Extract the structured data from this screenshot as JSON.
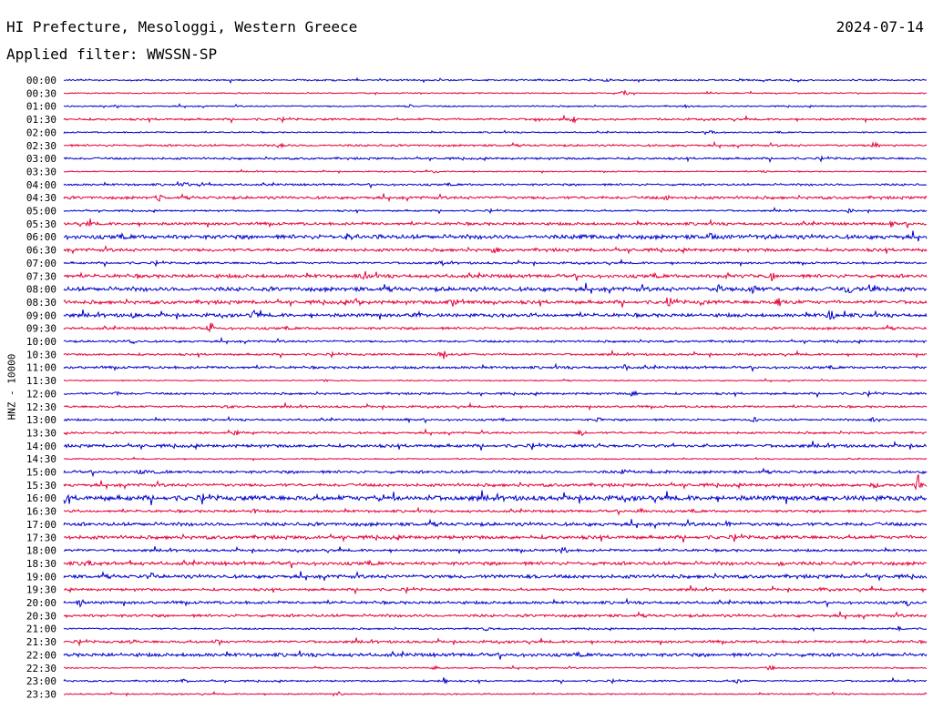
{
  "header": {
    "title": "HI Prefecture, Mesologgi, Western Greece",
    "date": "2024-07-14",
    "filter": "Applied filter: WWSSN-SP"
  },
  "chart_data": {
    "type": "line",
    "title": "",
    "ylabel": "HNZ - 10000",
    "xlabel": "",
    "grid": false,
    "legend": "none",
    "colors": {
      "even": "#0000cc",
      "odd": "#e6003a"
    },
    "rows": [
      {
        "label": "00:00",
        "level": 0.12,
        "events": [
          [
            0.63,
            0.2
          ]
        ]
      },
      {
        "label": "00:30",
        "level": 0.08,
        "events": [
          [
            0.65,
            0.35
          ]
        ]
      },
      {
        "label": "01:00",
        "level": 0.1,
        "events": [
          [
            0.4,
            0.2
          ],
          [
            0.72,
            0.2
          ]
        ]
      },
      {
        "label": "01:30",
        "level": 0.15,
        "events": [
          [
            0.55,
            0.35
          ],
          [
            0.59,
            0.45
          ]
        ]
      },
      {
        "label": "02:00",
        "level": 0.1,
        "events": [
          [
            0.75,
            0.25
          ]
        ]
      },
      {
        "label": "02:30",
        "level": 0.15,
        "events": [
          [
            0.25,
            0.25
          ],
          [
            0.94,
            0.35
          ]
        ]
      },
      {
        "label": "03:00",
        "level": 0.15,
        "events": []
      },
      {
        "label": "03:30",
        "level": 0.08,
        "events": [
          [
            0.43,
            0.2
          ],
          [
            0.81,
            0.15
          ]
        ]
      },
      {
        "label": "04:00",
        "level": 0.15,
        "events": [
          [
            0.14,
            0.3
          ],
          [
            0.16,
            0.25
          ]
        ]
      },
      {
        "label": "04:30",
        "level": 0.2,
        "events": [
          [
            0.11,
            0.3
          ],
          [
            0.7,
            0.2
          ]
        ]
      },
      {
        "label": "05:00",
        "level": 0.12,
        "events": [
          [
            0.91,
            0.4
          ]
        ]
      },
      {
        "label": "05:30",
        "level": 0.2,
        "events": [
          [
            0.03,
            0.35
          ],
          [
            0.96,
            0.45
          ]
        ]
      },
      {
        "label": "06:00",
        "level": 0.3,
        "events": [
          [
            0.33,
            0.35
          ],
          [
            0.6,
            0.3
          ],
          [
            0.75,
            0.35
          ]
        ]
      },
      {
        "label": "06:30",
        "level": 0.22,
        "events": [
          [
            0.5,
            0.35
          ]
        ]
      },
      {
        "label": "07:00",
        "level": 0.15,
        "events": [
          [
            0.44,
            0.3
          ]
        ]
      },
      {
        "label": "07:30",
        "level": 0.25,
        "events": [
          [
            0.35,
            0.55
          ],
          [
            0.77,
            0.55
          ],
          [
            0.82,
            0.5
          ]
        ]
      },
      {
        "label": "08:00",
        "level": 0.3,
        "events": [
          [
            0.76,
            0.6
          ],
          [
            0.8,
            0.45
          ],
          [
            0.91,
            0.45
          ],
          [
            0.94,
            0.55
          ]
        ]
      },
      {
        "label": "08:30",
        "level": 0.25,
        "events": [
          [
            0.34,
            0.45
          ],
          [
            0.45,
            0.45
          ],
          [
            0.7,
            0.5
          ],
          [
            0.74,
            0.45
          ],
          [
            0.83,
            0.5
          ]
        ]
      },
      {
        "label": "09:00",
        "level": 0.25,
        "events": [
          [
            0.08,
            0.3
          ],
          [
            0.22,
            0.55
          ],
          [
            0.41,
            0.4
          ],
          [
            0.89,
            0.7
          ]
        ]
      },
      {
        "label": "09:30",
        "level": 0.18,
        "events": [
          [
            0.17,
            0.4
          ]
        ]
      },
      {
        "label": "10:00",
        "level": 0.15,
        "events": [
          [
            0.08,
            0.3
          ]
        ]
      },
      {
        "label": "10:30",
        "level": 0.15,
        "events": [
          [
            0.44,
            1.25
          ]
        ]
      },
      {
        "label": "11:00",
        "level": 0.18,
        "events": [
          [
            0.65,
            0.25
          ]
        ]
      },
      {
        "label": "11:30",
        "level": 0.08,
        "events": [
          [
            0.3,
            0.2
          ]
        ]
      },
      {
        "label": "12:00",
        "level": 0.15,
        "events": [
          [
            0.06,
            0.3
          ],
          [
            0.66,
            0.3
          ]
        ]
      },
      {
        "label": "12:30",
        "level": 0.15,
        "events": [
          [
            0.19,
            0.2
          ]
        ]
      },
      {
        "label": "13:00",
        "level": 0.15,
        "events": [
          [
            0.4,
            0.25
          ],
          [
            0.62,
            0.3
          ],
          [
            0.8,
            0.3
          ],
          [
            0.94,
            0.3
          ]
        ]
      },
      {
        "label": "13:30",
        "level": 0.15,
        "events": [
          [
            0.2,
            0.4
          ],
          [
            0.6,
            0.35
          ]
        ]
      },
      {
        "label": "14:00",
        "level": 0.22,
        "events": [
          [
            0.62,
            0.25
          ]
        ]
      },
      {
        "label": "14:30",
        "level": 0.08,
        "events": []
      },
      {
        "label": "15:00",
        "level": 0.2,
        "events": [
          [
            0.09,
            0.25
          ],
          [
            0.65,
            0.25
          ]
        ]
      },
      {
        "label": "15:30",
        "level": 0.22,
        "events": [
          [
            0.94,
            0.55
          ],
          [
            0.99,
            1.25
          ]
        ]
      },
      {
        "label": "16:00",
        "level": 0.35,
        "events": [
          [
            0.0,
            0.5
          ],
          [
            0.37,
            0.3
          ],
          [
            0.88,
            0.3
          ]
        ]
      },
      {
        "label": "16:30",
        "level": 0.18,
        "events": [
          [
            0.22,
            0.3
          ],
          [
            0.67,
            0.3
          ]
        ]
      },
      {
        "label": "17:00",
        "level": 0.25,
        "events": [
          [
            0.77,
            0.25
          ]
        ]
      },
      {
        "label": "17:30",
        "level": 0.25,
        "events": [
          [
            0.28,
            0.25
          ]
        ]
      },
      {
        "label": "18:00",
        "level": 0.18,
        "events": [
          [
            0.58,
            0.55
          ]
        ]
      },
      {
        "label": "18:30",
        "level": 0.25,
        "events": [
          [
            0.03,
            0.45
          ],
          [
            0.83,
            0.35
          ]
        ]
      },
      {
        "label": "19:00",
        "level": 0.25,
        "events": [
          [
            0.1,
            0.35
          ],
          [
            0.5,
            0.2
          ]
        ]
      },
      {
        "label": "19:30",
        "level": 0.18,
        "events": [
          [
            0.88,
            0.35
          ]
        ]
      },
      {
        "label": "20:00",
        "level": 0.2,
        "events": [
          [
            0.02,
            0.5
          ],
          [
            0.98,
            0.3
          ]
        ]
      },
      {
        "label": "20:30",
        "level": 0.2,
        "events": []
      },
      {
        "label": "21:00",
        "level": 0.12,
        "events": [
          [
            0.49,
            0.25
          ],
          [
            0.97,
            0.3
          ]
        ]
      },
      {
        "label": "21:30",
        "level": 0.18,
        "events": [
          [
            0.18,
            0.35
          ],
          [
            0.08,
            0.25
          ]
        ]
      },
      {
        "label": "22:00",
        "level": 0.25,
        "events": []
      },
      {
        "label": "22:30",
        "level": 0.1,
        "events": [
          [
            0.43,
            0.25
          ],
          [
            0.82,
            0.25
          ]
        ]
      },
      {
        "label": "23:00",
        "level": 0.12,
        "events": [
          [
            0.14,
            0.3
          ],
          [
            0.44,
            0.4
          ],
          [
            0.78,
            0.25
          ]
        ]
      },
      {
        "label": "23:30",
        "level": 0.1,
        "events": [
          [
            0.32,
            0.25
          ]
        ]
      }
    ]
  }
}
